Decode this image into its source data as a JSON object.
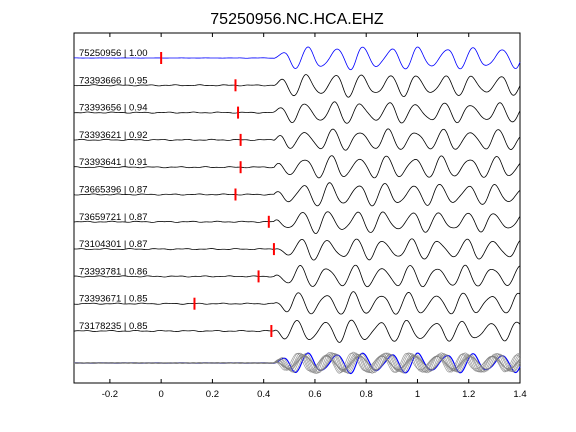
{
  "chart_data": {
    "type": "line",
    "title": "75250956.NC.HCA.EHZ",
    "xlabel": "",
    "ylabel": "",
    "xlim": [
      -0.34,
      1.4
    ],
    "xticks": [
      "-0.2",
      "0",
      "0.2",
      "0.4",
      "0.6",
      "0.8",
      "1",
      "1.2",
      "1.4"
    ],
    "xtick_values": [
      -0.2,
      0,
      0.2,
      0.4,
      0.6,
      0.8,
      1.0,
      1.2,
      1.4
    ],
    "grid": false,
    "colors": {
      "reference": "#0000ff",
      "trace": "#000000",
      "pick": "#ff0000",
      "stack": "#808080"
    },
    "traces": [
      {
        "label": "75250956 | 1.00",
        "pick": 0.0,
        "color": "#0000ff"
      },
      {
        "label": "73393666 | 0.95",
        "pick": 0.29,
        "color": "#000000"
      },
      {
        "label": "73393656 | 0.94",
        "pick": 0.3,
        "color": "#000000"
      },
      {
        "label": "73393621 | 0.92",
        "pick": 0.31,
        "color": "#000000"
      },
      {
        "label": "73393641 | 0.91",
        "pick": 0.31,
        "color": "#000000"
      },
      {
        "label": "73665396 | 0.87",
        "pick": 0.29,
        "color": "#000000"
      },
      {
        "label": "73659721 | 0.87",
        "pick": 0.42,
        "color": "#000000"
      },
      {
        "label": "73104301 | 0.87",
        "pick": 0.44,
        "color": "#000000"
      },
      {
        "label": "73393781 | 0.86",
        "pick": 0.38,
        "color": "#000000"
      },
      {
        "label": "73393671 | 0.85",
        "pick": 0.13,
        "color": "#000000"
      },
      {
        "label": "73178235 | 0.85",
        "pick": 0.43,
        "color": "#000000"
      }
    ],
    "overlay": {
      "label": "stack",
      "series_count": 11
    }
  }
}
